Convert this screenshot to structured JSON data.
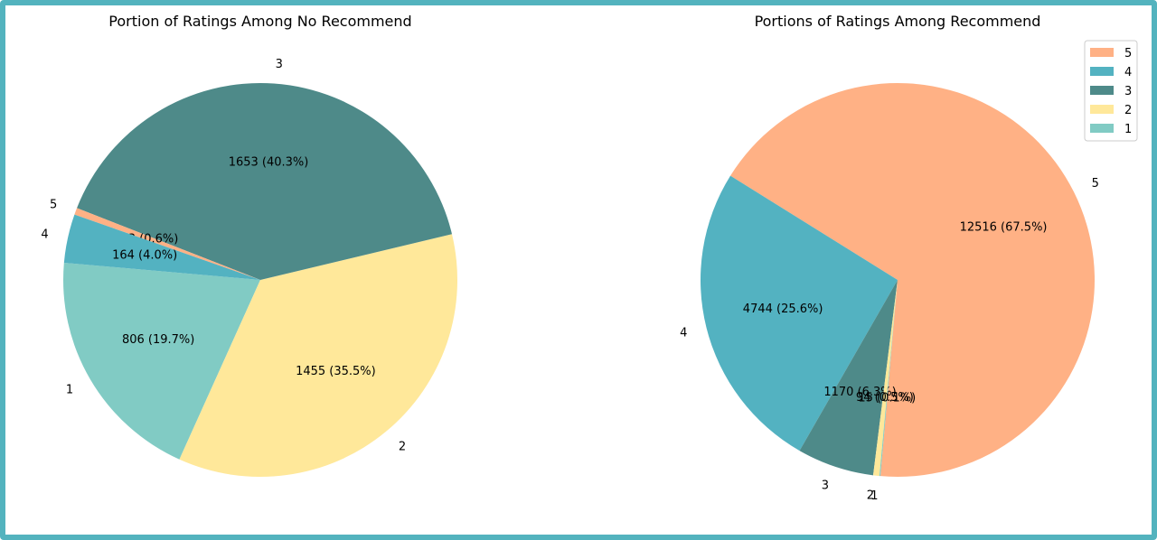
{
  "colors": {
    "frame": "#53b3be",
    "5": "#ffb185",
    "4": "#53b2c1",
    "3": "#4e8a89",
    "2": "#ffe89a",
    "1": "#81cbc4"
  },
  "chart_data": [
    {
      "type": "pie",
      "title": "Portion of Ratings Among No Recommend",
      "slices": [
        {
          "name": "1",
          "value": 806,
          "label": "806 (19.7%)"
        },
        {
          "name": "2",
          "value": 1455,
          "label": "1455 (35.5%)"
        },
        {
          "name": "3",
          "value": 1653,
          "label": "1653 (40.3%)"
        },
        {
          "name": "5",
          "value": 23,
          "label": "23 (0.6%)"
        },
        {
          "name": "4",
          "value": 164,
          "label": "164 (4.0%)"
        }
      ],
      "legend": null
    },
    {
      "type": "pie",
      "title": "Portions of Ratings Among Recommend",
      "slices": [
        {
          "name": "5",
          "value": 12516,
          "label": "12516 (67.5%)"
        },
        {
          "name": "4",
          "value": 4744,
          "label": "4744 (25.6%)"
        },
        {
          "name": "3",
          "value": 1170,
          "label": "1170 (6.3%)"
        },
        {
          "name": "2",
          "value": 94,
          "label": "94 (0.5%)"
        },
        {
          "name": "1",
          "value": 15,
          "label": "15 (0.1%)"
        }
      ],
      "legend": {
        "placement": "top-right",
        "entries": [
          "5",
          "4",
          "3",
          "2",
          "1"
        ]
      }
    }
  ]
}
